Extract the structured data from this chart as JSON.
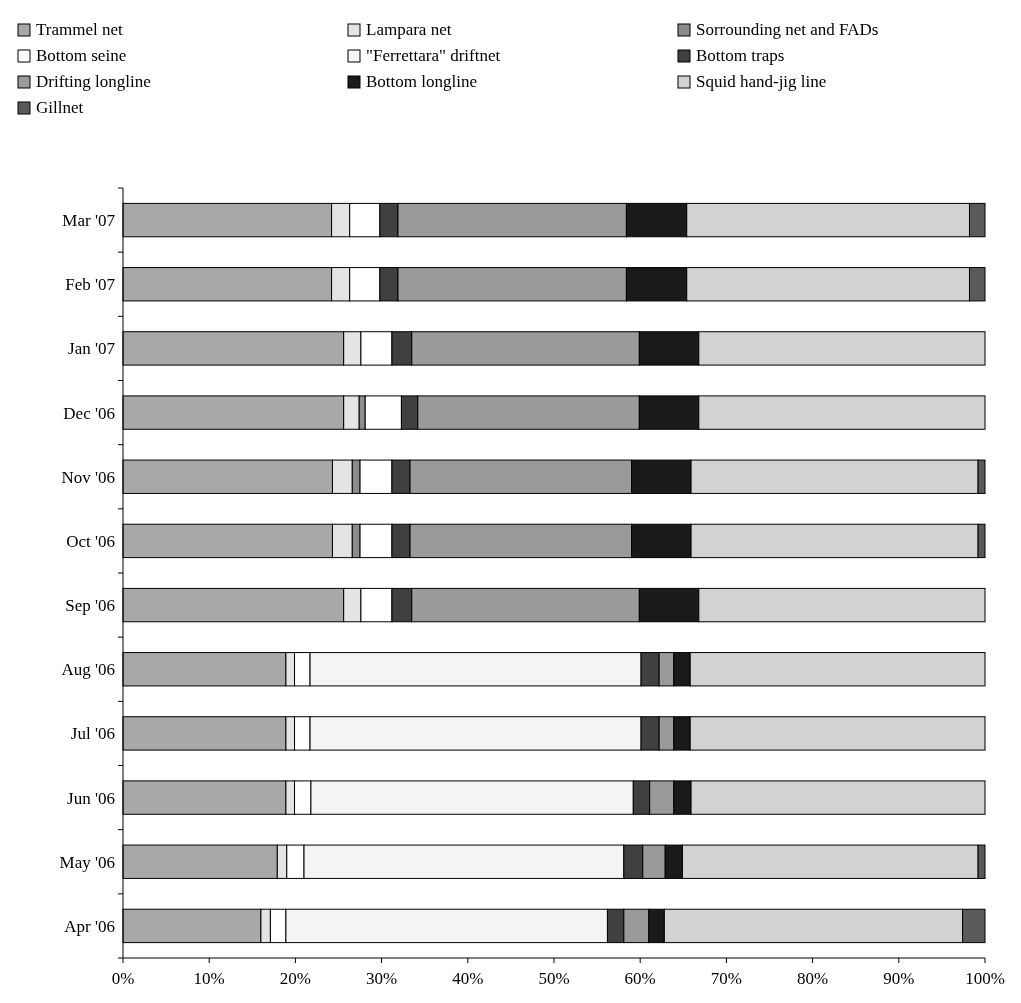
{
  "chart_data": {
    "type": "bar",
    "orientation": "horizontal",
    "stacked": true,
    "legend": "top",
    "grid": false,
    "categories": [
      "Mar '07",
      "Feb '07",
      "Jan '07",
      "Dec '06",
      "Nov '06",
      "Oct '06",
      "Sep '06",
      "Aug '06",
      "Jul '06",
      "Jun '06",
      "May '06",
      "Apr '06"
    ],
    "xlim": [
      0,
      100
    ],
    "xticks": [
      {
        "value": 0,
        "label": "0%"
      },
      {
        "value": 10,
        "label": "10%"
      },
      {
        "value": 20,
        "label": "20%"
      },
      {
        "value": 30,
        "label": "30%"
      },
      {
        "value": 40,
        "label": "40%"
      },
      {
        "value": 50,
        "label": "50%"
      },
      {
        "value": 60,
        "label": "60%"
      },
      {
        "value": 70,
        "label": "70%"
      },
      {
        "value": 80,
        "label": "80%"
      },
      {
        "value": 90,
        "label": "90%"
      },
      {
        "value": 100,
        "label": "100%"
      }
    ],
    "series": [
      {
        "name": "Trammel net",
        "color": "#a8a8a8",
        "values": [
          24.2,
          24.2,
          25.6,
          25.6,
          24.3,
          24.3,
          25.6,
          18.9,
          18.9,
          18.9,
          17.9,
          16.0
        ]
      },
      {
        "name": "Lampara net",
        "color": "#e4e4e4",
        "values": [
          2.1,
          2.1,
          2.0,
          1.8,
          2.3,
          2.3,
          2.0,
          1.0,
          1.0,
          1.0,
          1.1,
          1.1
        ]
      },
      {
        "name": "Sorrounding net and FADs",
        "color": "#8c8c8c",
        "values": [
          0,
          0,
          0,
          0.7,
          0.9,
          0.9,
          0,
          0,
          0,
          0,
          0,
          0
        ]
      },
      {
        "name": "Bottom seine",
        "color": "#ffffff",
        "values": [
          3.5,
          3.5,
          3.6,
          4.2,
          3.7,
          3.7,
          3.6,
          1.8,
          1.8,
          1.9,
          2.0,
          1.8
        ]
      },
      {
        "name": "\"Ferrettara\" driftnet",
        "color": "#f4f4f4",
        "values": [
          0,
          0,
          0,
          0,
          0,
          0,
          0,
          38.4,
          38.4,
          37.4,
          37.1,
          37.3
        ]
      },
      {
        "name": "Bottom traps",
        "color": "#404040",
        "values": [
          2.1,
          2.1,
          2.3,
          1.9,
          2.1,
          2.1,
          2.3,
          2.1,
          2.1,
          1.9,
          2.2,
          1.9
        ]
      },
      {
        "name": "Drifting longline",
        "color": "#9a9a9a",
        "values": [
          26.5,
          26.5,
          26.4,
          25.7,
          25.7,
          25.7,
          26.4,
          1.7,
          1.7,
          2.8,
          2.6,
          2.9
        ]
      },
      {
        "name": "Bottom longline",
        "color": "#1a1a1a",
        "values": [
          7.0,
          7.0,
          6.9,
          6.9,
          6.9,
          6.9,
          6.9,
          1.9,
          1.9,
          2.0,
          2.0,
          1.8
        ]
      },
      {
        "name": "Squid hand-jig line",
        "color": "#d2d2d2",
        "values": [
          32.8,
          32.8,
          33.2,
          33.2,
          33.3,
          33.3,
          33.2,
          34.2,
          34.2,
          34.1,
          34.3,
          34.6
        ]
      },
      {
        "name": "Gillnet",
        "color": "#5a5a5a",
        "values": [
          1.8,
          1.8,
          0,
          0,
          0.8,
          0.8,
          0,
          0,
          0,
          0,
          0.8,
          2.6
        ]
      }
    ]
  }
}
